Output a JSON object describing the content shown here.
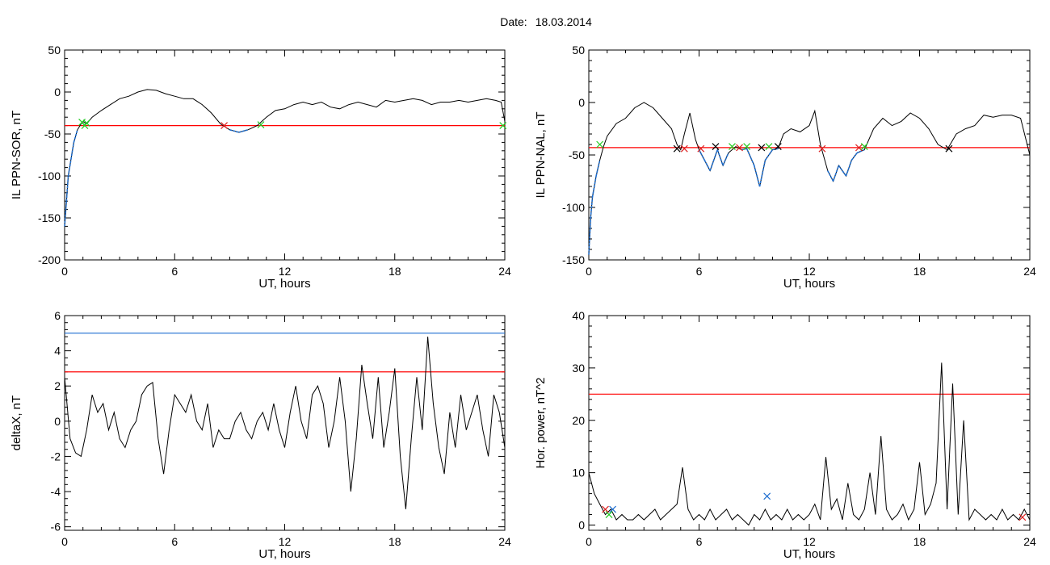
{
  "header": {
    "date_label": "Date:",
    "date_value": "18.03.2014"
  },
  "colors": {
    "trace": "#000000",
    "threshold": "#ff0000",
    "upper_threshold": "#1f6fd0",
    "blue_segment": "#1f6fd0",
    "green_marker": "#22cc22",
    "red_marker": "#dd2222"
  },
  "chart_data": [
    {
      "type": "line",
      "xlabel": "UT, hours",
      "ylabel": "IL PPN-SOR, nT",
      "xlim": [
        0,
        24
      ],
      "ylim": [
        -200,
        50
      ],
      "xticks": [
        0,
        6,
        12,
        18,
        24
      ],
      "yticks": [
        -200,
        -150,
        -100,
        -50,
        0,
        50
      ],
      "threshold": -40,
      "series": [
        {
          "x": [
            0,
            0.1,
            0.2,
            0.35,
            0.5,
            0.7,
            0.9,
            1.0,
            1.2,
            1.5,
            2.0,
            2.5,
            3.0,
            3.5,
            4.0,
            4.5,
            5.0,
            5.5,
            6.0,
            6.5,
            7.0,
            7.5,
            8.0,
            8.5,
            9.0,
            9.5,
            10.0,
            10.5,
            11.0,
            11.5,
            12.0,
            12.5,
            13.0,
            13.5,
            14.0,
            14.5,
            15.0,
            15.5,
            16.0,
            16.5,
            17.0,
            17.5,
            18.0,
            18.5,
            19.0,
            19.5,
            20.0,
            20.5,
            21.0,
            21.5,
            22.0,
            22.5,
            23.0,
            23.5,
            23.8,
            24.0
          ],
          "y": [
            -160,
            -130,
            -100,
            -80,
            -60,
            -45,
            -38,
            -35,
            -38,
            -30,
            -22,
            -15,
            -8,
            -5,
            0,
            3,
            2,
            -2,
            -5,
            -8,
            -8,
            -15,
            -25,
            -38,
            -45,
            -48,
            -45,
            -40,
            -30,
            -22,
            -20,
            -15,
            -12,
            -15,
            -12,
            -18,
            -20,
            -15,
            -12,
            -15,
            -18,
            -10,
            -12,
            -10,
            -8,
            -10,
            -15,
            -12,
            -12,
            -10,
            -12,
            -10,
            -8,
            -10,
            -12,
            -35
          ]
        }
      ],
      "markers": [
        {
          "x": 0.95,
          "y": -36,
          "color": "green"
        },
        {
          "x": 1.1,
          "y": -40,
          "color": "green"
        },
        {
          "x": 1.2,
          "y": -37,
          "color": "green"
        },
        {
          "x": 8.7,
          "y": -40,
          "color": "red"
        },
        {
          "x": 10.7,
          "y": -39,
          "color": "green"
        },
        {
          "x": 23.9,
          "y": -40,
          "color": "green"
        }
      ]
    },
    {
      "type": "line",
      "xlabel": "UT, hours",
      "ylabel": "IL PPN-NAL, nT",
      "xlim": [
        0,
        24
      ],
      "ylim": [
        -150,
        50
      ],
      "xticks": [
        0,
        6,
        12,
        18,
        24
      ],
      "yticks": [
        -150,
        -100,
        -50,
        0,
        50
      ],
      "threshold": -43,
      "series": [
        {
          "x": [
            0,
            0.1,
            0.2,
            0.4,
            0.6,
            0.8,
            1.0,
            1.5,
            2.0,
            2.5,
            3.0,
            3.5,
            4.0,
            4.5,
            4.8,
            5.0,
            5.2,
            5.5,
            5.8,
            6.0,
            6.3,
            6.6,
            7.0,
            7.3,
            7.6,
            8.0,
            8.3,
            8.6,
            9.0,
            9.3,
            9.6,
            10.0,
            10.3,
            10.6,
            11.0,
            11.5,
            12.0,
            12.3,
            12.6,
            13.0,
            13.3,
            13.6,
            14.0,
            14.3,
            14.6,
            15.0,
            15.5,
            16.0,
            16.5,
            17.0,
            17.5,
            18.0,
            18.5,
            19.0,
            19.5,
            20.0,
            20.5,
            21.0,
            21.5,
            22.0,
            22.5,
            23.0,
            23.5,
            24.0
          ],
          "y": [
            -145,
            -110,
            -90,
            -70,
            -55,
            -42,
            -32,
            -20,
            -15,
            -5,
            0,
            -5,
            -15,
            -25,
            -40,
            -45,
            -30,
            -10,
            -35,
            -45,
            -55,
            -65,
            -45,
            -60,
            -48,
            -42,
            -45,
            -44,
            -60,
            -80,
            -55,
            -45,
            -44,
            -30,
            -25,
            -28,
            -22,
            -8,
            -40,
            -65,
            -75,
            -60,
            -70,
            -55,
            -48,
            -45,
            -25,
            -15,
            -22,
            -18,
            -10,
            -15,
            -25,
            -40,
            -45,
            -30,
            -25,
            -22,
            -12,
            -14,
            -12,
            -12,
            -15,
            -50
          ]
        }
      ],
      "markers": [
        {
          "x": 0.6,
          "y": -40,
          "color": "green"
        },
        {
          "x": 4.8,
          "y": -44,
          "color": "black"
        },
        {
          "x": 5.2,
          "y": -44,
          "color": "red"
        },
        {
          "x": 6.1,
          "y": -44,
          "color": "red"
        },
        {
          "x": 6.9,
          "y": -42,
          "color": "black"
        },
        {
          "x": 7.8,
          "y": -42,
          "color": "green"
        },
        {
          "x": 8.2,
          "y": -43,
          "color": "red"
        },
        {
          "x": 8.6,
          "y": -42,
          "color": "green"
        },
        {
          "x": 9.4,
          "y": -43,
          "color": "black"
        },
        {
          "x": 9.8,
          "y": -42,
          "color": "green"
        },
        {
          "x": 10.3,
          "y": -42,
          "color": "black"
        },
        {
          "x": 12.7,
          "y": -44,
          "color": "red"
        },
        {
          "x": 14.7,
          "y": -43,
          "color": "red"
        },
        {
          "x": 15.0,
          "y": -42,
          "color": "green"
        },
        {
          "x": 19.6,
          "y": -44,
          "color": "black"
        }
      ]
    },
    {
      "type": "line",
      "xlabel": "UT, hours",
      "ylabel": "deltaX, nT",
      "xlim": [
        0,
        24
      ],
      "ylim": [
        -6.2,
        6
      ],
      "xticks": [
        0,
        6,
        12,
        18,
        24
      ],
      "yticks": [
        -6,
        -4,
        -2,
        0,
        2,
        4,
        6
      ],
      "threshold": 2.8,
      "upper_threshold": 5.0,
      "series": [
        {
          "x": [
            0,
            0.3,
            0.6,
            0.9,
            1.2,
            1.5,
            1.8,
            2.1,
            2.4,
            2.7,
            3.0,
            3.3,
            3.6,
            3.9,
            4.2,
            4.5,
            4.8,
            5.1,
            5.4,
            5.7,
            6.0,
            6.3,
            6.6,
            6.9,
            7.2,
            7.5,
            7.8,
            8.1,
            8.4,
            8.7,
            9.0,
            9.3,
            9.6,
            9.9,
            10.2,
            10.5,
            10.8,
            11.1,
            11.4,
            11.7,
            12.0,
            12.3,
            12.6,
            12.9,
            13.2,
            13.5,
            13.8,
            14.1,
            14.4,
            14.7,
            15.0,
            15.3,
            15.6,
            15.9,
            16.2,
            16.5,
            16.8,
            17.1,
            17.4,
            17.7,
            18.0,
            18.3,
            18.6,
            18.9,
            19.2,
            19.5,
            19.8,
            20.1,
            20.4,
            20.7,
            21.0,
            21.3,
            21.6,
            21.9,
            22.2,
            22.5,
            22.8,
            23.1,
            23.4,
            23.7,
            24.0
          ],
          "y": [
            2.5,
            -1.0,
            -1.8,
            -2.0,
            -0.5,
            1.5,
            0.5,
            1.0,
            -0.5,
            0.5,
            -1.0,
            -1.5,
            -0.5,
            0.0,
            1.5,
            2.0,
            2.2,
            -1.0,
            -3.0,
            -0.5,
            1.5,
            1.0,
            0.5,
            1.5,
            0.0,
            -0.5,
            1.0,
            -1.5,
            -0.5,
            -1.0,
            -1.0,
            0.0,
            0.5,
            -0.5,
            -1.0,
            0.0,
            0.5,
            -0.5,
            1.0,
            -0.5,
            -1.5,
            0.5,
            2.0,
            0.0,
            -1.0,
            1.5,
            2.0,
            1.0,
            -1.5,
            0.0,
            2.5,
            0.0,
            -4.0,
            -1.0,
            3.2,
            1.0,
            -1.0,
            2.5,
            -1.5,
            0.5,
            3.0,
            -2.0,
            -5.0,
            -1.0,
            2.5,
            -0.5,
            4.8,
            1.0,
            -1.5,
            -3.0,
            0.5,
            -1.5,
            1.5,
            -0.5,
            0.5,
            1.5,
            -0.5,
            -2.0,
            1.5,
            0.5,
            -1.5
          ]
        }
      ],
      "markers": []
    },
    {
      "type": "line",
      "xlabel": "UT, hours",
      "ylabel": "Hor. power, nT^2",
      "xlim": [
        0,
        24
      ],
      "ylim": [
        -1,
        40
      ],
      "xticks": [
        0,
        6,
        12,
        18,
        24
      ],
      "yticks": [
        0,
        10,
        20,
        30,
        40
      ],
      "threshold": 25,
      "series": [
        {
          "x": [
            0,
            0.3,
            0.6,
            0.9,
            1.2,
            1.5,
            1.8,
            2.1,
            2.4,
            2.7,
            3.0,
            3.3,
            3.6,
            3.9,
            4.2,
            4.5,
            4.8,
            5.1,
            5.4,
            5.7,
            6.0,
            6.3,
            6.6,
            6.9,
            7.2,
            7.5,
            7.8,
            8.1,
            8.4,
            8.7,
            9.0,
            9.3,
            9.6,
            9.9,
            10.2,
            10.5,
            10.8,
            11.1,
            11.4,
            11.7,
            12.0,
            12.3,
            12.6,
            12.9,
            13.2,
            13.5,
            13.8,
            14.1,
            14.4,
            14.7,
            15.0,
            15.3,
            15.6,
            15.9,
            16.2,
            16.5,
            16.8,
            17.1,
            17.4,
            17.7,
            18.0,
            18.3,
            18.6,
            18.9,
            19.2,
            19.5,
            19.8,
            20.1,
            20.4,
            20.7,
            21.0,
            21.3,
            21.6,
            21.9,
            22.2,
            22.5,
            22.8,
            23.1,
            23.4,
            23.7,
            24.0
          ],
          "y": [
            10,
            6,
            4,
            2,
            3,
            1,
            2,
            1,
            1,
            2,
            1,
            2,
            3,
            1,
            2,
            3,
            4,
            11,
            3,
            1,
            2,
            1,
            3,
            1,
            2,
            3,
            1,
            2,
            1,
            0,
            2,
            1,
            3,
            1,
            2,
            1,
            3,
            1,
            2,
            1,
            2,
            4,
            1,
            13,
            3,
            5,
            1,
            8,
            2,
            1,
            3,
            10,
            2,
            17,
            3,
            1,
            2,
            4,
            1,
            3,
            12,
            2,
            4,
            8,
            31,
            3,
            27,
            2,
            20,
            1,
            3,
            2,
            1,
            2,
            1,
            3,
            1,
            2,
            1,
            3,
            1
          ]
        }
      ],
      "markers": [
        {
          "x": 0.9,
          "y": 3,
          "color": "red"
        },
        {
          "x": 1.1,
          "y": 2,
          "color": "green"
        },
        {
          "x": 1.3,
          "y": 3,
          "color": "blue"
        },
        {
          "x": 9.7,
          "y": 5.5,
          "color": "blue"
        },
        {
          "x": 23.6,
          "y": 1.5,
          "color": "red"
        }
      ]
    }
  ]
}
